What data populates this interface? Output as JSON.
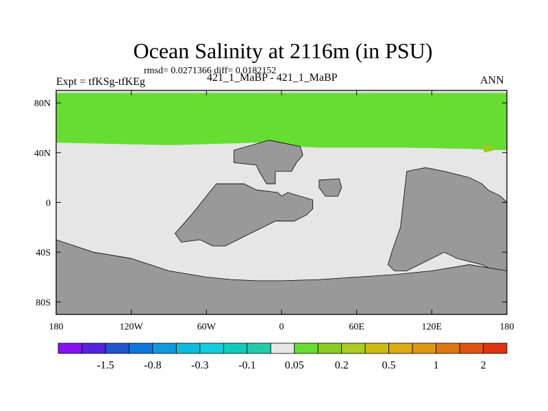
{
  "title": "Ocean Salinity at 2116m (in PSU)",
  "stats_line": "rmsd= 0.0271366 diff= 0.0182152",
  "experiment_label": "Expt = tfKSg-tfKEg",
  "cases_label": "421_1_MaBP - 421_1_MaBP",
  "season_label": "ANN",
  "colors": {
    "land": "#999999",
    "background": "#e6e6e6",
    "positive_anomaly": "#66dd33",
    "contour": "#000000"
  },
  "chart_data": {
    "type": "heatmap",
    "projection": "cylindrical-equidistant",
    "xlim": [
      -180,
      180
    ],
    "ylim": [
      -90,
      90
    ],
    "x_ticks": [
      {
        "value": -180,
        "label": "180"
      },
      {
        "value": -120,
        "label": "120W"
      },
      {
        "value": -60,
        "label": "60W"
      },
      {
        "value": 0,
        "label": "0"
      },
      {
        "value": 60,
        "label": "60E"
      },
      {
        "value": 120,
        "label": "120E"
      },
      {
        "value": 180,
        "label": "180"
      }
    ],
    "y_ticks": [
      {
        "value": 80,
        "label": "80N"
      },
      {
        "value": 40,
        "label": "40N"
      },
      {
        "value": 0,
        "label": "0"
      },
      {
        "value": -40,
        "label": "40S"
      },
      {
        "value": -80,
        "label": "80S"
      }
    ],
    "regions": [
      {
        "category": "0.05 to 0.2",
        "lon": [
          -180,
          180,
          180,
          150,
          100,
          30,
          10,
          0,
          -20,
          -90,
          -180
        ],
        "lat": [
          88,
          88,
          42,
          43,
          44,
          44,
          45,
          47,
          48,
          46,
          48
        ]
      },
      {
        "category": "0.2 to 0.5",
        "lon": [
          160,
          168,
          170,
          162
        ],
        "lat": [
          46,
          46,
          42,
          40
        ]
      }
    ],
    "land_masses": [
      {
        "name": "northern-continent",
        "lon": [
          -38,
          -10,
          0,
          15,
          17,
          12,
          8,
          -5,
          -5,
          -12,
          -18,
          -20,
          -38
        ],
        "lat": [
          42,
          50,
          48,
          45,
          38,
          32,
          25,
          25,
          15,
          15,
          25,
          30,
          32
        ]
      },
      {
        "name": "central-continent",
        "lon": [
          -52,
          -30,
          -20,
          -3,
          0,
          5,
          25,
          25,
          20,
          10,
          -5,
          -25,
          -45,
          -55,
          -65,
          -80,
          -85,
          -72,
          -60,
          -52
        ],
        "lat": [
          15,
          15,
          10,
          8,
          5,
          8,
          2,
          -5,
          -10,
          -15,
          -15,
          -25,
          -35,
          -35,
          -30,
          -32,
          -25,
          -10,
          5,
          15
        ]
      },
      {
        "name": "island",
        "lon": [
          30,
          46,
          48,
          45,
          35,
          30
        ],
        "lat": [
          18,
          19,
          12,
          5,
          5,
          12
        ]
      },
      {
        "name": "eastern-continent",
        "lon": [
          100,
          115,
          130,
          150,
          160,
          165,
          175,
          180,
          180,
          170,
          160,
          140,
          130,
          100,
          90,
          85,
          88,
          95,
          100
        ],
        "lat": [
          25,
          28,
          25,
          20,
          15,
          10,
          5,
          0,
          -55,
          -55,
          -50,
          -45,
          -40,
          -55,
          -55,
          -50,
          -40,
          -20,
          25
        ]
      },
      {
        "name": "southern-continent",
        "lon": [
          -180,
          -150,
          -120,
          -90,
          -60,
          -40,
          -20,
          0,
          30,
          60,
          90,
          120,
          150,
          180,
          180,
          -180
        ],
        "lat": [
          -30,
          -40,
          -45,
          -55,
          -60,
          -62,
          -63,
          -63,
          -62,
          -60,
          -58,
          -55,
          -50,
          -55,
          -90,
          -90
        ]
      }
    ],
    "colorbar": {
      "colors": [
        "#8811ee",
        "#5522dd",
        "#2255cc",
        "#1177dd",
        "#1199dd",
        "#11bbdd",
        "#11ccdd",
        "#11ccbb",
        "#22ccaa",
        "#e6e6e6",
        "#66dd33",
        "#88cc22",
        "#aacc22",
        "#ccbb11",
        "#ddaa11",
        "#dd9911",
        "#dd7711",
        "#dd5511",
        "#dd3311"
      ],
      "labels": [
        {
          "after_box": 2,
          "label": "-1.5"
        },
        {
          "after_box": 4,
          "label": "-0.8"
        },
        {
          "after_box": 6,
          "label": "-0.3"
        },
        {
          "after_box": 8,
          "label": "-0.1"
        },
        {
          "after_box": 10,
          "label": "0.05"
        },
        {
          "after_box": 12,
          "label": "0.2"
        },
        {
          "after_box": 14,
          "label": "0.5"
        },
        {
          "after_box": 16,
          "label": "1"
        },
        {
          "after_box": 18,
          "label": "2"
        }
      ]
    }
  }
}
